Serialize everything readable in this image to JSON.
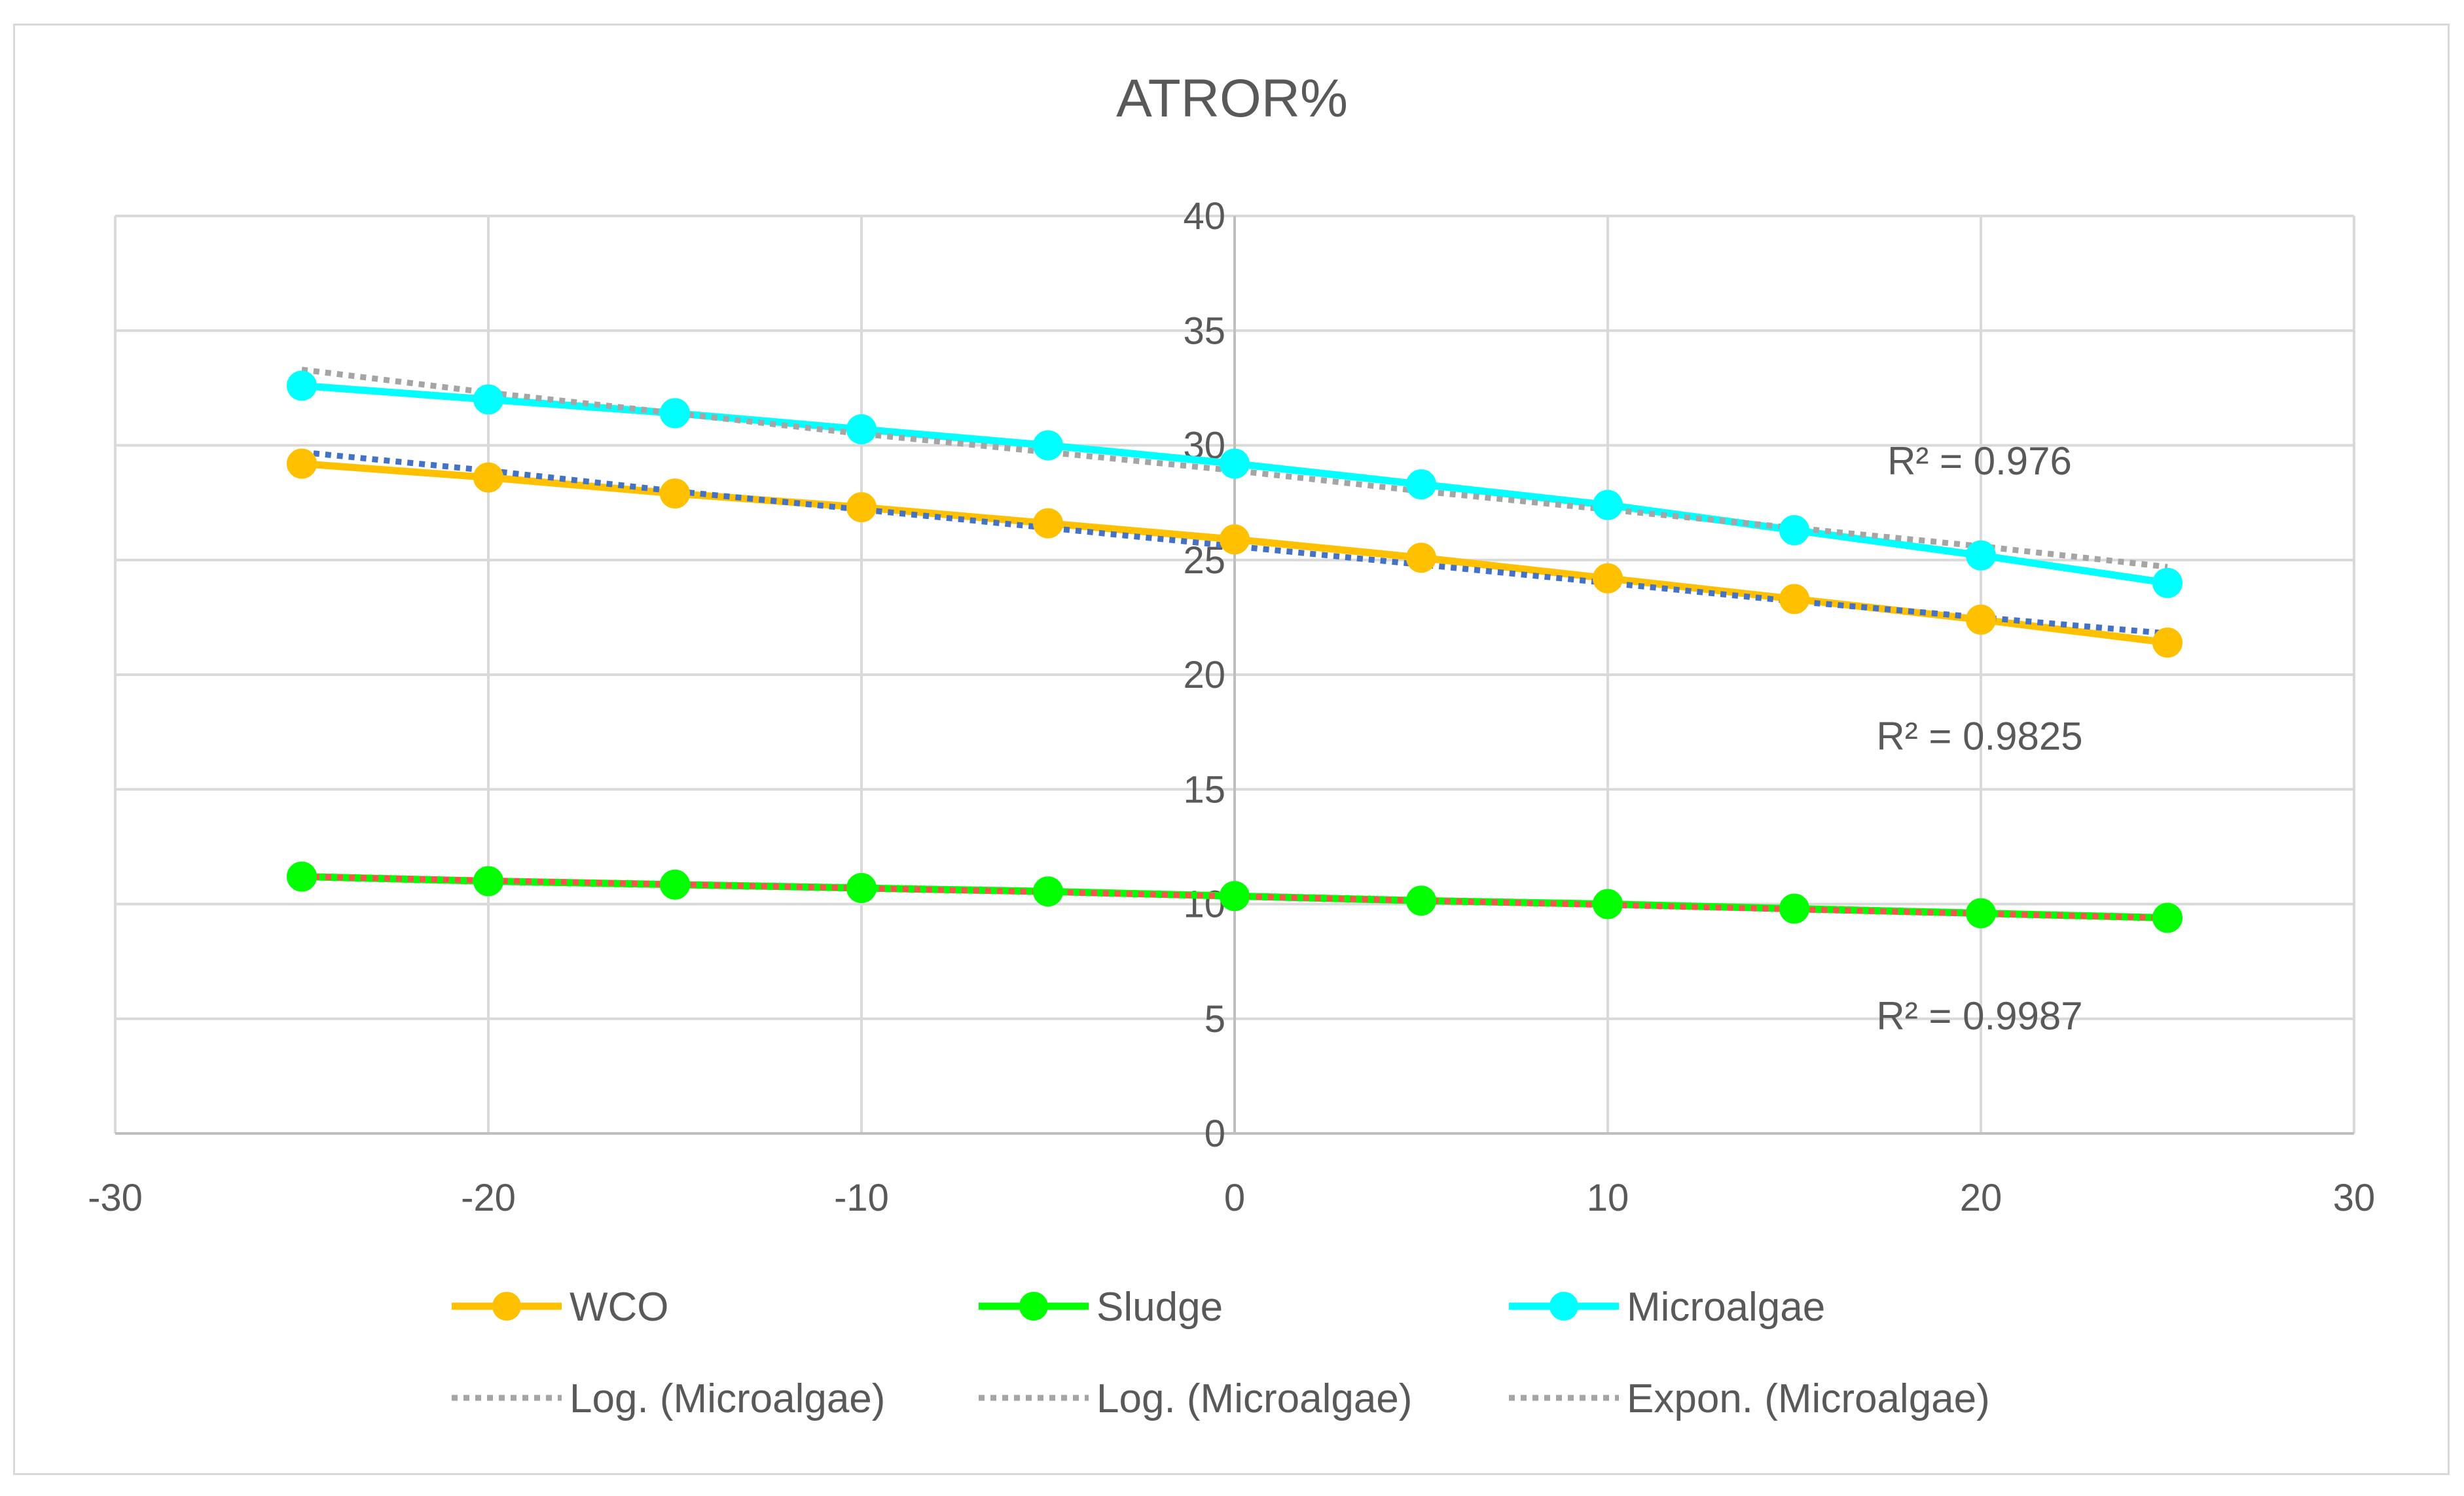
{
  "chart_data": {
    "type": "line",
    "title": "ATROR%",
    "xlabel": "",
    "ylabel": "",
    "xlim": [
      -30,
      30
    ],
    "ylim": [
      0,
      40
    ],
    "x_ticks": [
      -30,
      -20,
      -10,
      0,
      10,
      20,
      30
    ],
    "y_ticks": [
      0,
      5,
      10,
      15,
      20,
      25,
      30,
      35,
      40
    ],
    "x_tick_labels": [
      "-30",
      "-20",
      "-10",
      "0",
      "10",
      "20",
      "30"
    ],
    "y_tick_labels": [
      "0",
      "5",
      "10",
      "15",
      "20",
      "25",
      "30",
      "35",
      "40"
    ],
    "grid": true,
    "legend_position": "bottom",
    "x": [
      -25,
      -20,
      -15,
      -10,
      -5,
      0,
      5,
      10,
      15,
      20,
      25
    ],
    "series": [
      {
        "name": "WCO",
        "color": "#FFC000",
        "values": [
          29.2,
          28.6,
          27.9,
          27.3,
          26.6,
          25.9,
          25.1,
          24.2,
          23.3,
          22.4,
          21.4
        ]
      },
      {
        "name": "Sludge",
        "color": "#00FF00",
        "values": [
          11.2,
          11.0,
          10.85,
          10.7,
          10.55,
          10.35,
          10.15,
          10.0,
          9.8,
          9.6,
          9.4
        ]
      },
      {
        "name": "Microalgae",
        "color": "#00FFFF",
        "values": [
          32.6,
          32.0,
          31.4,
          30.7,
          30.0,
          29.2,
          28.3,
          27.4,
          26.3,
          25.2,
          24.0
        ]
      }
    ],
    "trendlines": [
      {
        "name": "Log. (Microalgae)",
        "legend_color": "#A5A5A5",
        "line_color": "#4472C4",
        "values": [
          29.7,
          28.9,
          28.0,
          27.2,
          26.4,
          25.6,
          24.8,
          24.0,
          23.2,
          22.5,
          21.8
        ]
      },
      {
        "name": "Log. (Microalgae)",
        "legend_color": "#A5A5A5",
        "line_color": "#FF5050",
        "values": [
          11.2,
          11.03,
          10.86,
          10.69,
          10.52,
          10.34,
          10.15,
          9.96,
          9.77,
          9.58,
          9.4
        ]
      },
      {
        "name": "Expon. (Microalgae)",
        "legend_color": "#A5A5A5",
        "line_color": "#A5A5A5",
        "values": [
          33.3,
          32.3,
          31.4,
          30.5,
          29.7,
          28.9,
          28.0,
          27.2,
          26.4,
          25.6,
          24.7
        ]
      }
    ],
    "annotations": [
      {
        "text": "R² = 0.976",
        "x": 20,
        "y": 29.3
      },
      {
        "text": "R² = 0.9825",
        "x": 20,
        "y": 17.3
      },
      {
        "text": "R² = 0.9987",
        "x": 20,
        "y": 5.1
      }
    ]
  }
}
